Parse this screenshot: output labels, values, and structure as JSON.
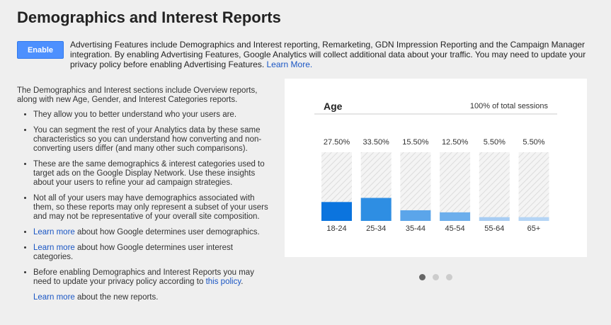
{
  "header": {
    "title": "Demographics and Interest Reports"
  },
  "enable_button": "Enable",
  "notice": {
    "text": "Advertising Features include Demographics and Interest reporting, Remarketing, GDN Impression Reporting and the Campaign Manager integration. By enabling Advertising Features, Google Analytics will collect additional data about your traffic. You may need to update your privacy policy before enabling Advertising Features.",
    "link": "Learn More."
  },
  "intro": "The Demographics and Interest sections include Overview reports, along with new Age, Gender, and Interest Categories reports.",
  "bullets": [
    {
      "text": "They allow you to better understand who your users are."
    },
    {
      "text": "You can segment the rest of your Analytics data by these same characteristics so you can understand how converting and non-converting users differ (and many other such comparisons)."
    },
    {
      "text": "These are the same demographics & interest categories used to target ads on the Google Display Network. Use these insights about your users to refine your ad campaign strategies."
    },
    {
      "text": "Not all of your users may have demographics associated with them, so these reports may only represent a subset of your users and may not be representative of your overall site composition."
    },
    {
      "link": "Learn more",
      "text": "about how Google determines user demographics."
    },
    {
      "link": "Learn more",
      "text": "about how Google determines user interest categories."
    },
    {
      "text": "Before enabling Demographics and Interest Reports you may need to update your privacy policy according to",
      "link": "this policy",
      "tail": "."
    }
  ],
  "footer": {
    "link": "Learn more",
    "text": "about the new reports."
  },
  "chart_data": {
    "type": "bar",
    "title": "Age",
    "subtitle": "100% of total sessions",
    "categories": [
      "18-24",
      "25-34",
      "35-44",
      "45-54",
      "55-64",
      "65+"
    ],
    "values": [
      27.5,
      33.5,
      15.5,
      12.5,
      5.5,
      5.5
    ],
    "value_labels": [
      "27.50%",
      "33.50%",
      "15.50%",
      "12.50%",
      "5.50%",
      "5.50%"
    ],
    "colors": [
      "#0b74de",
      "#2e8ee3",
      "#5ba5ea",
      "#6caeec",
      "#a8cdf3",
      "#b5d5f5"
    ],
    "ylim": [
      0,
      100
    ]
  }
}
